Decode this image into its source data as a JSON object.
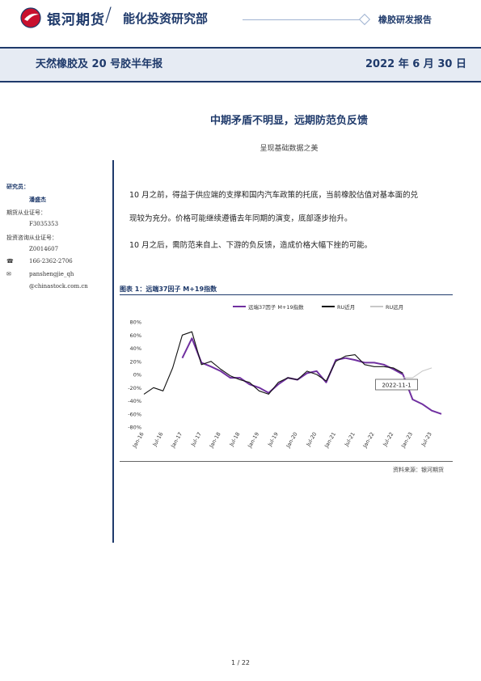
{
  "header": {
    "brand": "银河期货",
    "department": "能化投资研究部",
    "report_type": "橡胶研发报告",
    "title": "天然橡胶及 20 号胶半年报",
    "date": "2022 年 6 月 30 日"
  },
  "article": {
    "headline": "中期矛盾不明显，远期防范负反馈",
    "subhead": "呈现基础数据之美",
    "para1_line1": "10 月之前，得益于供应端的支撑和国内汽车政策的托底，当前橡胶估值对基本面的兑",
    "para1_line2": "现较为充分。价格可能继续遵循去年同期的演变，底部逐步抬升。",
    "para2": "10 月之后，需防范来自上、下游的负反馈，造成价格大幅下挫的可能。"
  },
  "sidebar": {
    "researcher_label": "研究员：",
    "researcher_name": "潘盛杰",
    "license1_label": "期货从业证号：",
    "license1_value": "F3035353",
    "license2_label": "投资咨询从业证号：",
    "license2_value": "Z0014607",
    "phone_icon": "phone-icon",
    "phone": "166-2362-2706",
    "email_icon": "mail-icon",
    "email_line1": "panshengjie_qh",
    "email_line2": "@chinastock.com.cn"
  },
  "chart_caption": "图表 1：远端37因子 M+19指数",
  "source": "资料来源：银河期货",
  "pager": "1 / 22",
  "chart_data": {
    "type": "line",
    "title": "",
    "x": [
      "Jan-16",
      "Apr-16",
      "Jul-16",
      "Oct-16",
      "Jan-17",
      "Apr-17",
      "Jul-17",
      "Oct-17",
      "Jan-18",
      "Apr-18",
      "Jul-18",
      "Oct-18",
      "Jan-19",
      "Apr-19",
      "Jul-19",
      "Oct-19",
      "Jan-20",
      "Apr-20",
      "Jul-20",
      "Oct-20",
      "Jan-21",
      "Apr-21",
      "Jul-21",
      "Oct-21",
      "Jan-22",
      "Apr-22",
      "Jul-22",
      "Oct-22",
      "Jan-23",
      "Apr-23",
      "Jul-23",
      "Oct-23"
    ],
    "xticks": [
      "Jan-16",
      "Jul-16",
      "Jan-17",
      "Jul-17",
      "Jan-18",
      "Jul-18",
      "Jan-19",
      "Jul-19",
      "Jan-20",
      "Jul-20",
      "Jan-21",
      "Jul-21",
      "Jan-22",
      "Jul-22",
      "Jan-23",
      "Jul-23"
    ],
    "yticks": [
      "80%",
      "60%",
      "40%",
      "20%",
      "0%",
      "-20%",
      "-40%",
      "-60%",
      "-80%"
    ],
    "ylim": [
      -80,
      80
    ],
    "series": [
      {
        "name": "远端37因子 M+19指数",
        "color": "#7030a0",
        "values": [
          null,
          null,
          null,
          null,
          25,
          55,
          18,
          12,
          5,
          -5,
          -5,
          -15,
          -20,
          -28,
          -15,
          -5,
          -8,
          2,
          5,
          -12,
          22,
          25,
          22,
          18,
          18,
          15,
          8,
          0,
          -38,
          -45,
          -55,
          -60
        ]
      },
      {
        "name": "RU近月",
        "color": "#111111",
        "values": [
          -30,
          -20,
          -25,
          10,
          60,
          65,
          15,
          20,
          8,
          -2,
          -8,
          -12,
          -25,
          -30,
          -12,
          -5,
          -8,
          5,
          0,
          -10,
          20,
          28,
          30,
          15,
          12,
          12,
          10,
          2,
          null,
          null,
          null,
          null
        ]
      },
      {
        "name": "RU远月",
        "color": "#c8c8c8",
        "values": [
          null,
          null,
          null,
          null,
          null,
          null,
          null,
          null,
          null,
          null,
          null,
          null,
          null,
          null,
          null,
          null,
          null,
          null,
          null,
          null,
          null,
          null,
          null,
          null,
          null,
          null,
          null,
          -5,
          -5,
          5,
          10,
          null
        ]
      }
    ],
    "annotation": "2022-11-1",
    "legend_position": "top",
    "grid": false
  }
}
